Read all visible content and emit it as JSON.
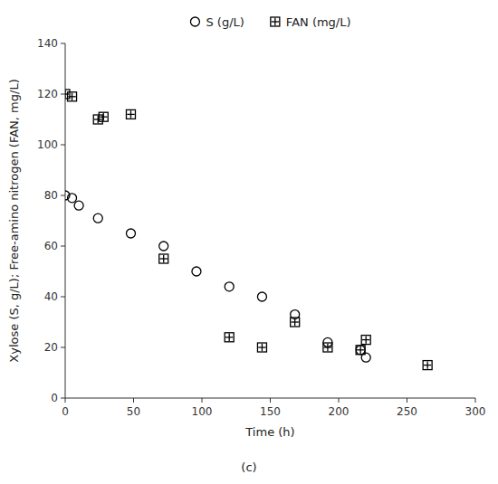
{
  "chart_data": {
    "type": "scatter",
    "subtitle": "(c)",
    "x_label": "Time (h)",
    "y_label": "Xylose (S, g/L); Free-amino nitrogen (FAN, mg/L)",
    "series": [
      {
        "name": "S (g/L)",
        "color": "black",
        "marker": "circle",
        "x": [
          0,
          5,
          10,
          24,
          48,
          72,
          96,
          120,
          144,
          168,
          192,
          216,
          220
        ],
        "values": [
          80,
          79,
          76,
          71,
          65,
          60,
          50,
          44,
          40,
          33,
          22,
          19,
          16
        ]
      },
      {
        "name": "FAN (mg/L)",
        "color": "black",
        "marker": "square-cross",
        "x": [
          0,
          5,
          24,
          28,
          48,
          72,
          120,
          144,
          168,
          192,
          216,
          220,
          265
        ],
        "values": [
          120,
          119,
          110,
          111,
          112,
          55,
          24,
          20,
          30,
          20,
          19,
          23,
          13
        ]
      }
    ],
    "xlim": [
      0,
      300
    ],
    "ylim": [
      0,
      140
    ],
    "xticks": [
      0,
      50,
      100,
      150,
      200,
      250,
      300
    ],
    "yticks": [
      0,
      20,
      40,
      60,
      80,
      100,
      120,
      140
    ],
    "grid": false,
    "legend": "top"
  }
}
